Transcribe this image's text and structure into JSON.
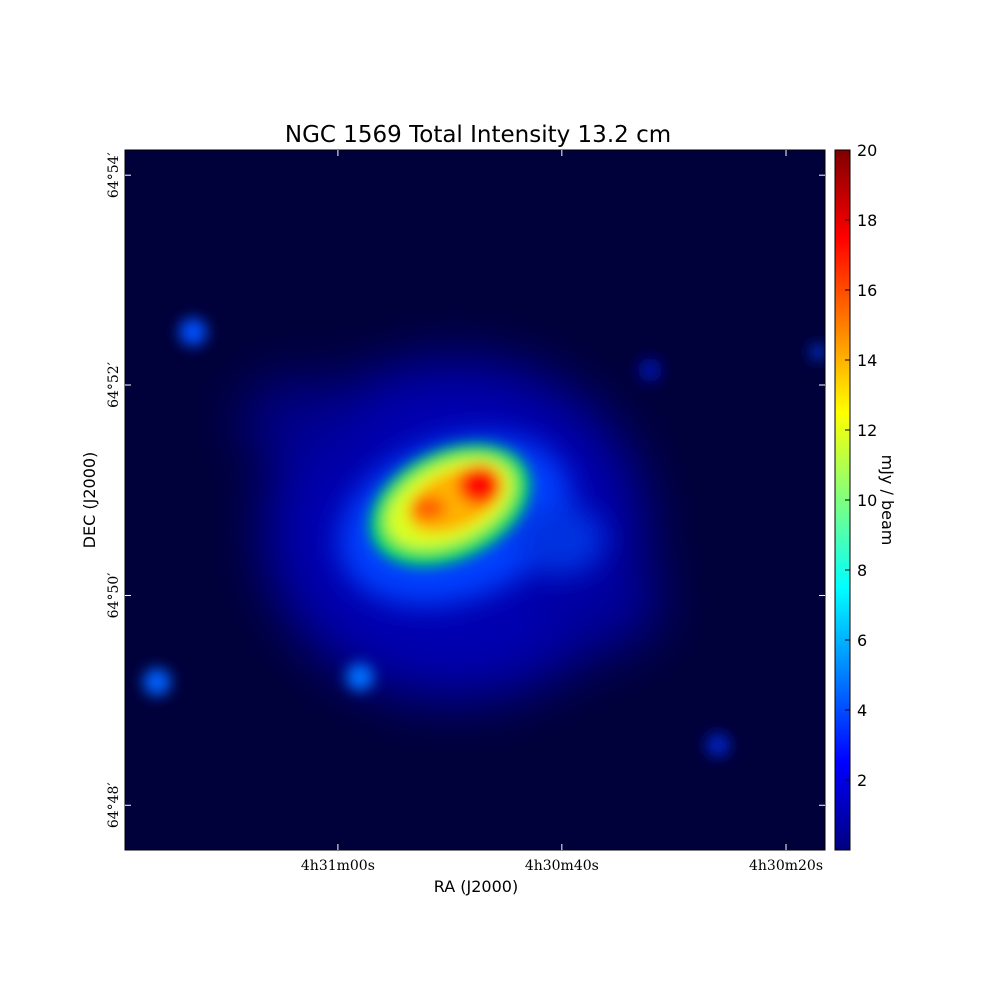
{
  "chart_data": {
    "type": "image",
    "title": "NGC 1569 Total Intensity 13.2 cm",
    "x_label": "RA (J2000)",
    "y_label": "DEC (J2000)",
    "xlim": [
      67.8292,
      67.5688
    ],
    "xticks": [
      {
        "value": 67.75,
        "label": "4h31m00s"
      },
      {
        "value": 67.6667,
        "label": "4h30m40s"
      },
      {
        "value": 67.5833,
        "label": "4h30m20s"
      }
    ],
    "ylim": [
      64.7929,
      64.904
    ],
    "yticks": [
      {
        "value": 64.8,
        "label": "64°48′"
      },
      {
        "value": 64.8333,
        "label": "64°50′"
      },
      {
        "value": 64.8667,
        "label": "64°52′"
      },
      {
        "value": 64.9,
        "label": "64°54′"
      }
    ],
    "colormap": "jet",
    "colorbar_label": "mJy / beam",
    "clim": [
      0,
      20
    ],
    "cticks": [
      2,
      4,
      6,
      8,
      10,
      12,
      14,
      16,
      18,
      20
    ]
  }
}
